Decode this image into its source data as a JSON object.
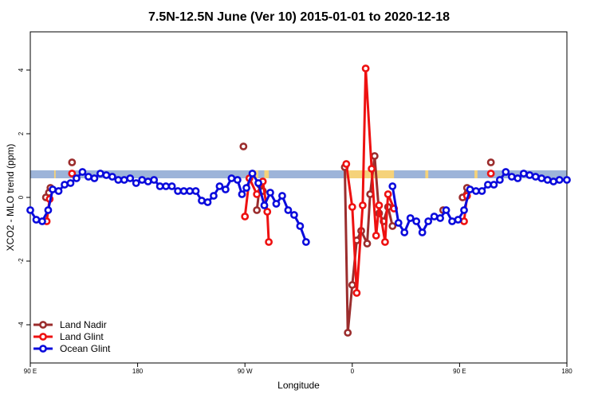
{
  "chart_data": {
    "type": "line",
    "title": "7.5N-12.5N June (Ver 10)   2015-01-01 to 2020-12-18",
    "xlabel": "Longitude",
    "ylabel": "XCO2 - MLO trend (ppm)",
    "xlim": [
      -90,
      270
    ],
    "ylim": [
      -5.2,
      5.2
    ],
    "x_ticks": [
      {
        "value": -90,
        "label": "90 E"
      },
      {
        "value": -18,
        "label": "180"
      },
      {
        "value": 54,
        "label": "90 W"
      },
      {
        "value": 126,
        "label": "0"
      },
      {
        "value": 198,
        "label": "90 E"
      },
      {
        "value": 270,
        "label": "180"
      }
    ],
    "y_ticks": [
      {
        "value": -4,
        "label": "-4"
      },
      {
        "value": -2,
        "label": "-2"
      },
      {
        "value": 0,
        "label": "0"
      },
      {
        "value": 2,
        "label": "2"
      },
      {
        "value": 4,
        "label": "4"
      }
    ],
    "band": {
      "y_min": 0.6,
      "y_max": 0.85,
      "color": "#9db4d9",
      "highlight_color": "#f5d27a"
    },
    "legend_position": "bottom-left",
    "series": [
      {
        "name": "Land Nadir",
        "color": "#9b2d2d",
        "segments": [
          [
            [
              -79.5,
              0.0
            ],
            [
              -77.5,
              0.15
            ],
            [
              -76.5,
              0.3
            ]
          ],
          [
            [
              -62,
              1.1
            ]
          ],
          [
            [
              53,
              1.6
            ]
          ],
          [
            [
              62,
              -0.4
            ],
            [
              64,
              0.4
            ],
            [
              66,
              0.2
            ]
          ],
          [
            [
              121,
              0.95
            ],
            [
              123,
              -4.25
            ],
            [
              126,
              -2.75
            ],
            [
              129,
              -1.35
            ],
            [
              132,
              -1.05
            ],
            [
              136,
              -1.45
            ],
            [
              138,
              0.1
            ],
            [
              141,
              1.3
            ],
            [
              144,
              -0.5
            ],
            [
              147,
              -0.75
            ],
            [
              150,
              -0.3
            ],
            [
              153,
              -0.9
            ]
          ],
          [
            [
              187,
              -0.4
            ]
          ],
          [
            [
              200,
              0.0
            ],
            [
              203,
              0.3
            ]
          ],
          [
            [
              219,
              1.1
            ]
          ]
        ]
      },
      {
        "name": "Land Glint",
        "color": "#ee1111",
        "segments": [
          [
            [
              -79,
              -0.75
            ],
            [
              -77,
              -0.05
            ]
          ],
          [
            [
              -62,
              0.75
            ]
          ],
          [
            [
              54,
              -0.6
            ],
            [
              57,
              0.6
            ],
            [
              62,
              0.1
            ],
            [
              66,
              0.5
            ],
            [
              69,
              -0.45
            ],
            [
              70,
              -1.4
            ]
          ],
          [
            [
              122,
              1.05
            ],
            [
              126,
              -0.3
            ],
            [
              129,
              -3.0
            ],
            [
              133,
              -0.25
            ],
            [
              135,
              4.05
            ],
            [
              139,
              0.9
            ],
            [
              142,
              -1.2
            ],
            [
              144,
              -0.25
            ],
            [
              148,
              -1.4
            ],
            [
              150,
              0.1
            ],
            [
              154,
              -0.35
            ]
          ],
          [
            [
              201,
              -0.75
            ],
            [
              203,
              0.05
            ]
          ],
          [
            [
              219,
              0.75
            ]
          ]
        ]
      },
      {
        "name": "Ocean Glint",
        "color": "#0b0bdc",
        "segments": [
          [
            [
              -90,
              -0.4
            ],
            [
              -86,
              -0.7
            ],
            [
              -82,
              -0.75
            ],
            [
              -78,
              -0.4
            ],
            [
              -75,
              0.25
            ],
            [
              -71,
              0.2
            ],
            [
              -67,
              0.4
            ],
            [
              -63,
              0.45
            ],
            [
              -59,
              0.6
            ],
            [
              -55,
              0.8
            ],
            [
              -51,
              0.65
            ],
            [
              -47,
              0.6
            ],
            [
              -43,
              0.75
            ],
            [
              -39,
              0.7
            ],
            [
              -35,
              0.65
            ],
            [
              -31,
              0.55
            ],
            [
              -27,
              0.55
            ],
            [
              -23,
              0.6
            ],
            [
              -19,
              0.45
            ],
            [
              -15,
              0.55
            ],
            [
              -11,
              0.5
            ],
            [
              -7,
              0.55
            ],
            [
              -3,
              0.35
            ],
            [
              1,
              0.35
            ],
            [
              5,
              0.35
            ],
            [
              9,
              0.2
            ],
            [
              13,
              0.2
            ],
            [
              17,
              0.2
            ],
            [
              21,
              0.2
            ],
            [
              25,
              -0.1
            ],
            [
              29,
              -0.15
            ],
            [
              33,
              0.05
            ],
            [
              37,
              0.35
            ],
            [
              41,
              0.25
            ],
            [
              45,
              0.6
            ],
            [
              49,
              0.55
            ],
            [
              52,
              0.1
            ],
            [
              55,
              0.3
            ],
            [
              59,
              0.75
            ],
            [
              63,
              0.45
            ],
            [
              67,
              -0.25
            ],
            [
              71,
              0.15
            ],
            [
              75,
              -0.2
            ],
            [
              79,
              0.05
            ],
            [
              83,
              -0.4
            ],
            [
              87,
              -0.55
            ],
            [
              91,
              -0.9
            ],
            [
              95,
              -1.4
            ]
          ],
          [
            [
              153,
              0.35
            ],
            [
              157,
              -0.8
            ],
            [
              161,
              -1.1
            ],
            [
              165,
              -0.65
            ],
            [
              169,
              -0.75
            ],
            [
              173,
              -1.1
            ],
            [
              177,
              -0.75
            ],
            [
              181,
              -0.6
            ],
            [
              185,
              -0.65
            ],
            [
              189,
              -0.4
            ],
            [
              193,
              -0.75
            ],
            [
              197,
              -0.7
            ],
            [
              201,
              -0.4
            ],
            [
              205,
              0.25
            ],
            [
              209,
              0.2
            ],
            [
              213,
              0.2
            ],
            [
              217,
              0.4
            ],
            [
              221,
              0.4
            ],
            [
              225,
              0.55
            ],
            [
              229,
              0.8
            ],
            [
              233,
              0.65
            ],
            [
              237,
              0.6
            ],
            [
              241,
              0.75
            ],
            [
              245,
              0.7
            ],
            [
              249,
              0.65
            ],
            [
              253,
              0.6
            ],
            [
              257,
              0.55
            ],
            [
              261,
              0.5
            ],
            [
              265,
              0.55
            ],
            [
              270,
              0.55
            ]
          ]
        ]
      }
    ]
  }
}
